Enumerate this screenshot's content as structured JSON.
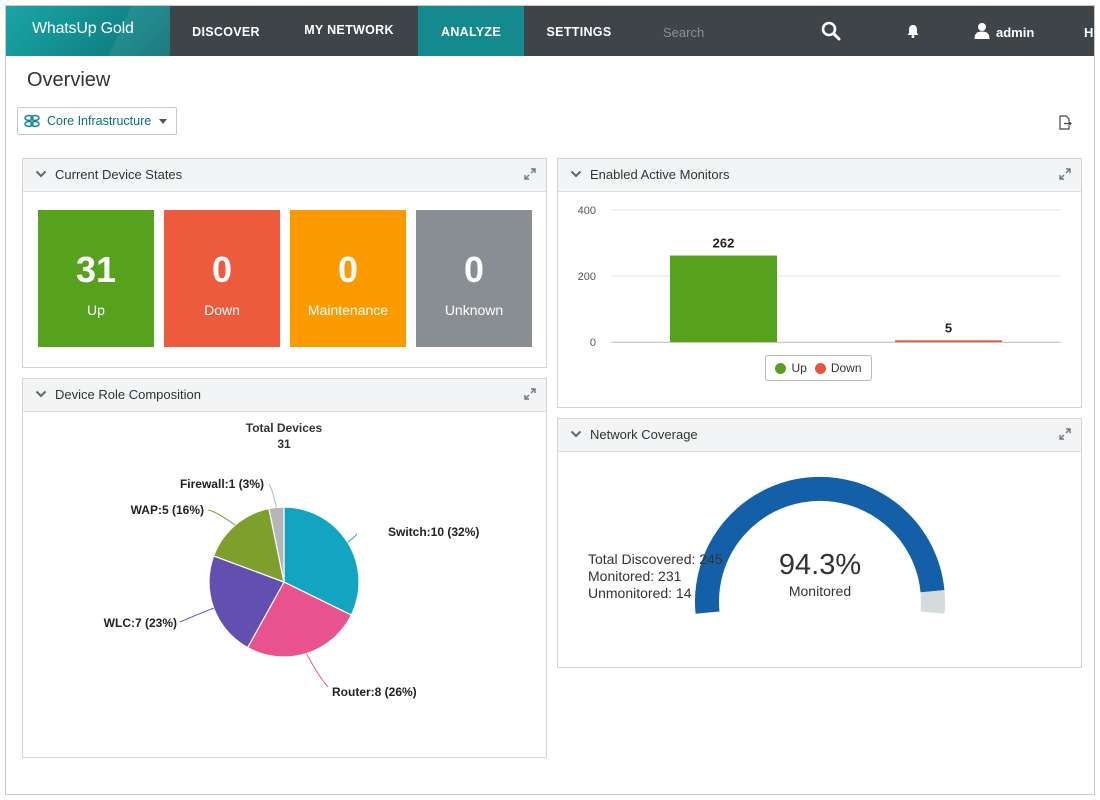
{
  "nav": {
    "logo": "WhatsUp Gold",
    "items": [
      "DISCOVER",
      "MY NETWORK",
      "ANALYZE",
      "SETTINGS"
    ],
    "active": "ANALYZE",
    "search_placeholder": "Search",
    "user": "admin",
    "help_partial": "H"
  },
  "page": {
    "title": "Overview",
    "scope_selector": "Core Infrastructure"
  },
  "device_states": {
    "title": "Current Device States",
    "tiles": [
      {
        "value": "31",
        "label": "Up",
        "color": "#56a21c"
      },
      {
        "value": "0",
        "label": "Down",
        "color": "#ee5a3c"
      },
      {
        "value": "0",
        "label": "Maintenance",
        "color": "#fb9b00"
      },
      {
        "value": "0",
        "label": "Unknown",
        "color": "#898e93"
      }
    ]
  },
  "active_monitors": {
    "title": "Enabled Active Monitors",
    "legend": [
      {
        "name": "Up",
        "color": "#56a21c"
      },
      {
        "name": "Down",
        "color": "#e5553a"
      }
    ]
  },
  "role_composition": {
    "title": "Device Role Composition",
    "total_label": "Total Devices",
    "total_value": "31",
    "slice_labels": [
      "Switch:10 (32%)",
      "Router:8 (26%)",
      "WLC:7 (23%)",
      "WAP:5 (16%)",
      "Firewall:1 (3%)"
    ]
  },
  "coverage": {
    "title": "Network Coverage",
    "total_discovered": "Total Discovered: 245",
    "monitored": "Monitored: 231",
    "unmonitored": "Unmonitored: 14",
    "percent": "94.3%",
    "percent_label": "Monitored",
    "fraction": 0.943,
    "colors": {
      "monitored": "#1460a8",
      "unmonitored": "#d5dadc"
    }
  },
  "chart_data": [
    {
      "type": "bar",
      "title": "Enabled Active Monitors",
      "categories": [
        "Up",
        "Down"
      ],
      "values": [
        262,
        5
      ],
      "colors": [
        "#56a21c",
        "#e5553a"
      ],
      "ylim": [
        0,
        400
      ],
      "yticks": [
        0,
        200,
        400
      ],
      "grid": true,
      "legend": "bottom-center"
    },
    {
      "type": "pie",
      "title": "Device Role Composition",
      "categories": [
        "Switch",
        "Router",
        "WLC",
        "WAP",
        "Firewall"
      ],
      "values": [
        10,
        8,
        7,
        5,
        1
      ],
      "colors": [
        "#12a5c2",
        "#e8538f",
        "#624fb0",
        "#7f9f2d",
        "#b3b5b8"
      ]
    }
  ]
}
